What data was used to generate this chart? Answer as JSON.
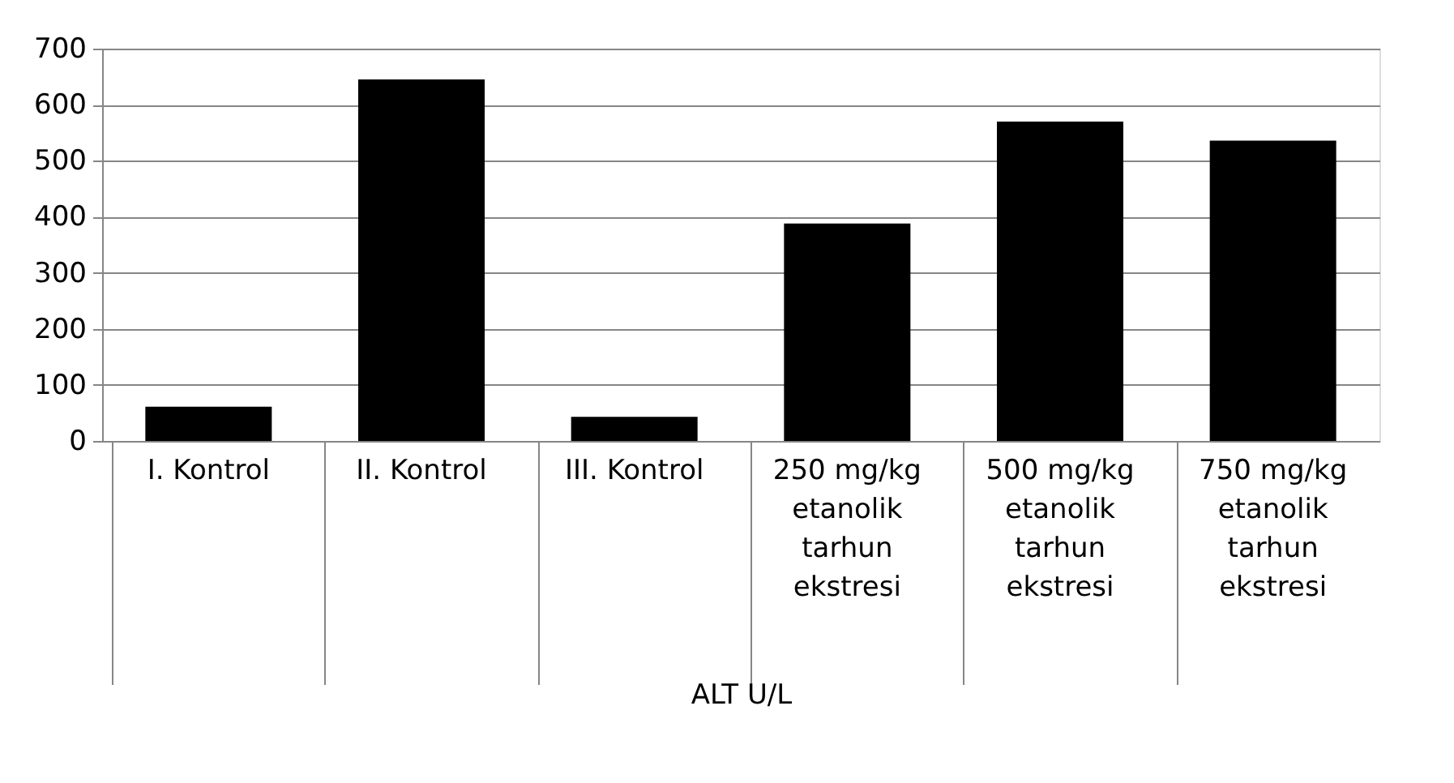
{
  "chart_data": {
    "type": "bar",
    "xlabel": "ALT U/L",
    "categories": [
      "I. Kontrol",
      "II. Kontrol",
      "III. Kontrol",
      "250 mg/kg etanolik tarhun ekstresi",
      "500 mg/kg etanolik tarhun ekstresi",
      "750 mg/kg etanolik tarhun ekstresi"
    ],
    "values": [
      61,
      645,
      43,
      388,
      570,
      536
    ],
    "color": "#000000",
    "ylim": [
      0,
      700
    ],
    "yticks": [
      0,
      100,
      200,
      300,
      400,
      500,
      600,
      700
    ],
    "grid": "y"
  }
}
